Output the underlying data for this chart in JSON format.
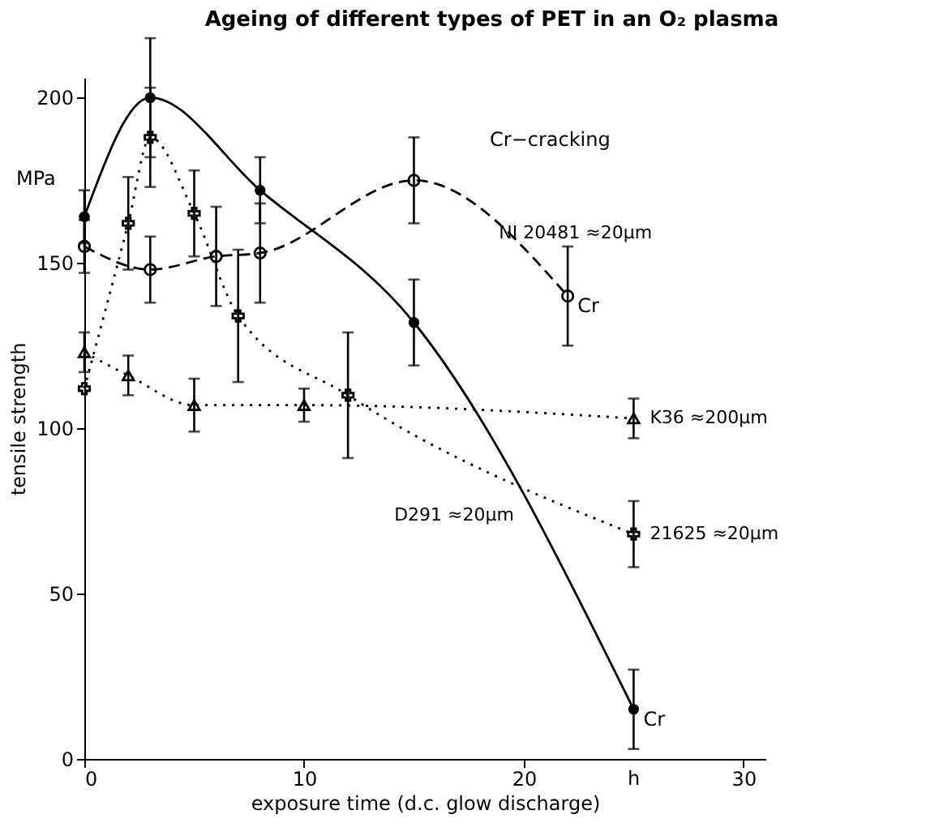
{
  "chart_data": {
    "type": "line",
    "title": "Ageing of different types of PET in an O₂ plasma",
    "xlabel": "exposure time (d.c. glow discharge)",
    "ylabel": "tensile strength",
    "xlim": [
      0,
      31
    ],
    "ylim": [
      0,
      206
    ],
    "xticks": [
      0,
      10,
      20,
      30
    ],
    "yticks": [
      0,
      50,
      100,
      150,
      200
    ],
    "grid": false,
    "series": [
      {
        "name": "D291 ≈20µm",
        "color": "#000000",
        "line_style": "solid",
        "marker": "circle",
        "x": [
          0,
          3,
          8,
          15,
          25
        ],
        "values": [
          164,
          200,
          172,
          132,
          15
        ],
        "errors": [
          8,
          18,
          10,
          13,
          12
        ]
      },
      {
        "name": "NI 20481 ≈20µm",
        "color": "#000000",
        "line_style": "dashed",
        "marker": "circle",
        "x": [
          0,
          3,
          6,
          8,
          15,
          22
        ],
        "values": [
          155,
          148,
          152,
          153,
          175,
          140
        ],
        "errors": [
          8,
          10,
          15,
          15,
          13,
          15
        ]
      },
      {
        "name": "21625 ≈20µm",
        "color": "#000000",
        "line_style": "dotted",
        "marker": "cross",
        "x": [
          0,
          2,
          3,
          5,
          7,
          12,
          25
        ],
        "values": [
          112,
          162,
          188,
          165,
          134,
          110,
          68
        ],
        "errors": [
          null,
          14,
          15,
          13,
          20,
          19,
          10
        ]
      },
      {
        "name": "K36 ≈200µm",
        "color": "#000000",
        "line_style": "dotted",
        "marker": "triangle",
        "x": [
          0,
          2,
          5,
          10,
          25
        ],
        "values": [
          123,
          116,
          107,
          107,
          103
        ],
        "errors": [
          6,
          6,
          8,
          5,
          6
        ]
      }
    ],
    "annotations": [
      "Cr−cracking",
      "MPa",
      "h",
      {
        "text": "Cr",
        "x": 22,
        "y": 140
      },
      {
        "text": "Cr",
        "x": 25,
        "y": 15
      }
    ]
  }
}
